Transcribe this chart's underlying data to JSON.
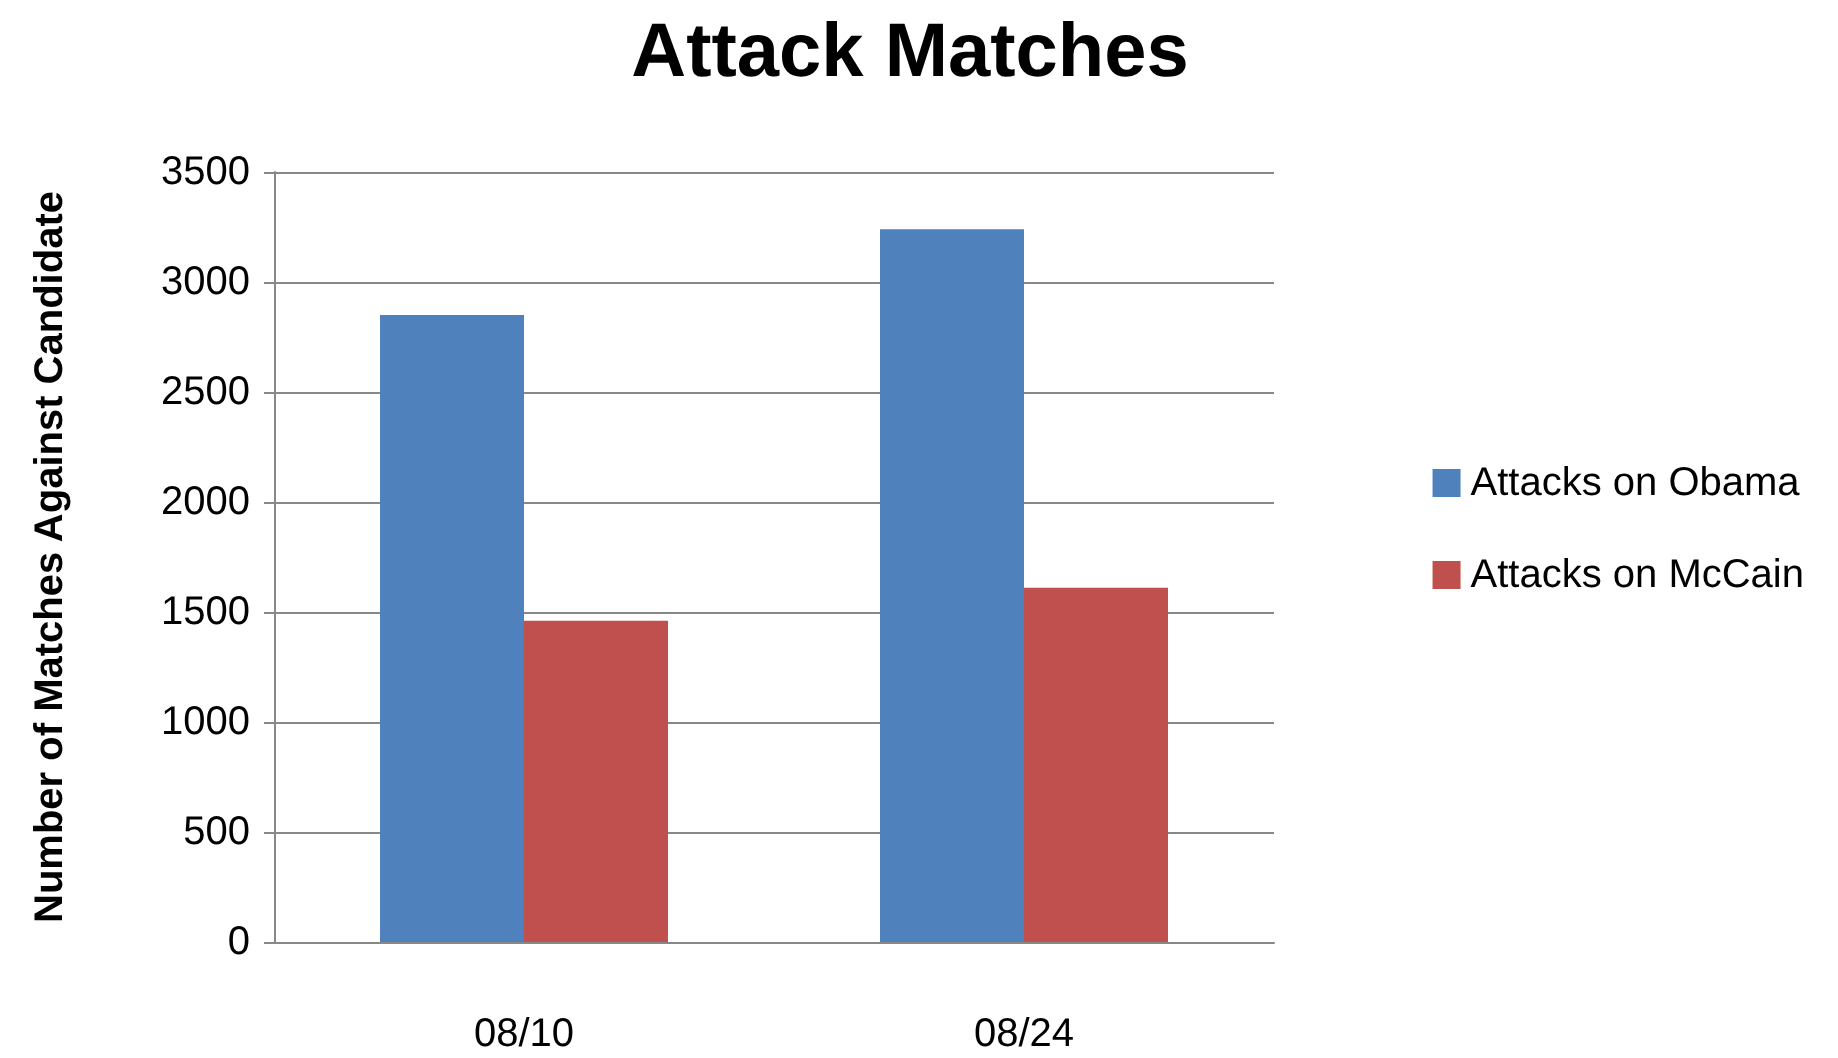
{
  "chart_data": {
    "type": "bar",
    "title": "Attack Matches",
    "ylabel": "Number of Matches Against Candidate",
    "categories": [
      "08/10",
      "08/24"
    ],
    "series": [
      {
        "name": "Attacks on Obama",
        "color": "#4f81bd",
        "values": [
          2850,
          3240
        ]
      },
      {
        "name": "Attacks on McCain",
        "color": "#c0504d",
        "values": [
          1460,
          1610
        ]
      }
    ],
    "ylim": [
      0,
      3500
    ],
    "yticks": [
      0,
      500,
      1000,
      1500,
      2000,
      2500,
      3000,
      3500
    ],
    "grid": "y",
    "legend": "right"
  }
}
